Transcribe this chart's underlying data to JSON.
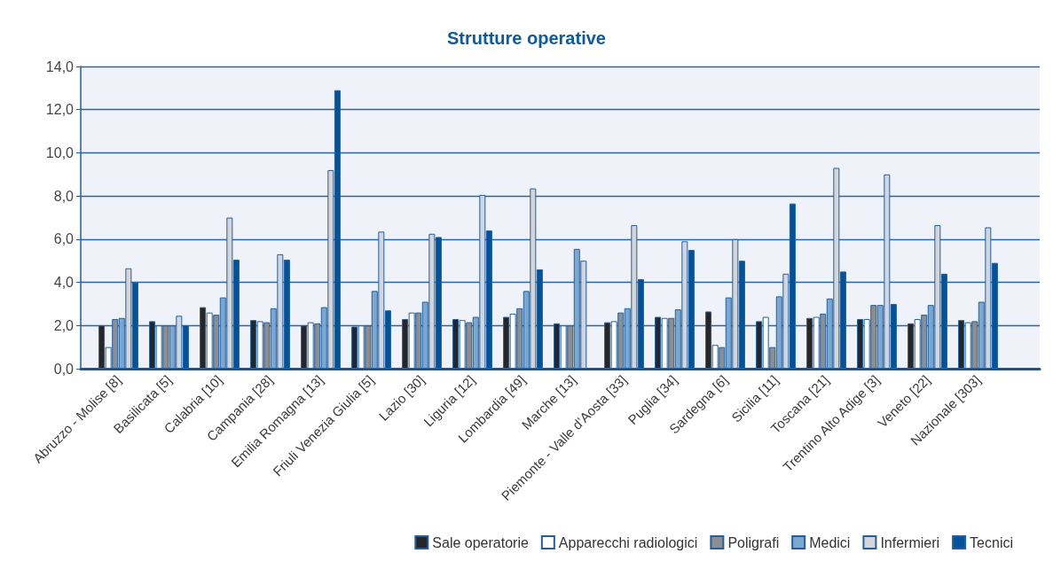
{
  "chart_data": {
    "type": "bar",
    "title": "Strutture operative",
    "categories": [
      "Abruzzo - Molise [8]",
      "Basilicata [5]",
      "Calabria [10]",
      "Campania [28]",
      "Emilia Romagna [13]",
      "Friuli Venezia Giulia [5]",
      "Lazio [30]",
      "Liguria [12]",
      "Lombardia [49]",
      "Marche [13]",
      "Piemonte - Valle d’Aosta [33]",
      "Puglia [34]",
      "Sardegna [6]",
      "Sicilia [11]",
      "Toscana [21]",
      "Trentino Alto Adige [3]",
      "Veneto [22]",
      "Nazionale [303]"
    ],
    "series": [
      {
        "name": "Sale operatorie",
        "color": "#262626",
        "values": [
          2.0,
          2.2,
          2.85,
          2.25,
          2.0,
          1.95,
          2.3,
          2.3,
          2.4,
          2.1,
          2.15,
          2.4,
          2.65,
          2.2,
          2.35,
          2.3,
          2.1,
          2.25
        ]
      },
      {
        "name": "Apparecchi radiologici",
        "color": "#ffffff",
        "values": [
          1.0,
          2.0,
          2.6,
          2.2,
          2.15,
          2.0,
          2.6,
          2.25,
          2.55,
          2.0,
          2.2,
          2.35,
          1.1,
          2.4,
          2.4,
          2.3,
          2.3,
          2.15
        ]
      },
      {
        "name": "Poligrafi",
        "color": "#8e8e8e",
        "values": [
          2.3,
          2.0,
          2.5,
          2.15,
          2.1,
          2.0,
          2.6,
          2.15,
          2.8,
          2.0,
          2.6,
          2.35,
          1.0,
          1.0,
          2.55,
          2.95,
          2.5,
          2.2
        ]
      },
      {
        "name": "Medici",
        "color": "#7ca8d0",
        "values": [
          2.35,
          2.0,
          3.3,
          2.8,
          2.85,
          3.6,
          3.1,
          2.4,
          3.6,
          5.55,
          2.8,
          2.75,
          3.3,
          3.35,
          3.25,
          2.95,
          2.95,
          3.1
        ]
      },
      {
        "name": "Infermieri",
        "color": "#d3d5d8",
        "values": [
          4.65,
          2.45,
          7.0,
          5.3,
          9.2,
          6.35,
          6.25,
          8.05,
          8.35,
          5.0,
          6.65,
          5.9,
          6.0,
          4.4,
          9.3,
          9.0,
          6.65,
          6.55
        ]
      },
      {
        "name": "Tecnici",
        "color": "#00539b",
        "values": [
          4.0,
          2.0,
          5.05,
          5.05,
          12.9,
          2.7,
          6.1,
          6.4,
          4.6,
          null,
          4.15,
          5.5,
          5.0,
          7.65,
          4.5,
          3.0,
          4.4,
          4.9
        ]
      }
    ],
    "ylim": [
      0,
      14
    ],
    "yticks": [
      {
        "value": 0,
        "label": "0,0"
      },
      {
        "value": 2,
        "label": "2,0"
      },
      {
        "value": 4,
        "label": "4,0"
      },
      {
        "value": 6,
        "label": "6,0"
      },
      {
        "value": 8,
        "label": "8,0"
      },
      {
        "value": 10,
        "label": "10,0"
      },
      {
        "value": 12,
        "label": "12,0"
      },
      {
        "value": 14,
        "label": "14,0"
      }
    ],
    "grid": "y",
    "legend": "bottom right"
  }
}
